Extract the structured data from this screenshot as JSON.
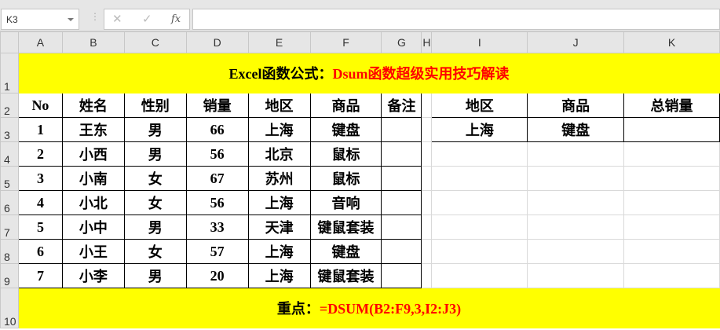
{
  "formula_bar": {
    "name_box": "K3",
    "cancel_icon": "✕",
    "enter_icon": "✓",
    "fx_label": "fx",
    "formula": ""
  },
  "columns": [
    "A",
    "B",
    "C",
    "D",
    "E",
    "F",
    "G",
    "H",
    "I",
    "J",
    "K"
  ],
  "rows": [
    "1",
    "2",
    "3",
    "4",
    "5",
    "6",
    "7",
    "8",
    "9",
    "10"
  ],
  "title": {
    "prefix": "Excel函数公式：",
    "highlight": "Dsum函数超级实用技巧解读"
  },
  "main_table": {
    "headers": [
      "No",
      "姓名",
      "性别",
      "销量",
      "地区",
      "商品",
      "备注"
    ],
    "rows": [
      [
        "1",
        "王东",
        "男",
        "66",
        "上海",
        "键盘",
        ""
      ],
      [
        "2",
        "小西",
        "男",
        "56",
        "北京",
        "鼠标",
        ""
      ],
      [
        "3",
        "小南",
        "女",
        "67",
        "苏州",
        "鼠标",
        ""
      ],
      [
        "4",
        "小北",
        "女",
        "56",
        "上海",
        "音响",
        ""
      ],
      [
        "5",
        "小中",
        "男",
        "33",
        "天津",
        "键鼠套装",
        ""
      ],
      [
        "6",
        "小王",
        "女",
        "57",
        "上海",
        "键盘",
        ""
      ],
      [
        "7",
        "小李",
        "男",
        "20",
        "上海",
        "键鼠套装",
        ""
      ]
    ]
  },
  "criteria_table": {
    "headers": [
      "地区",
      "商品",
      "总销量"
    ],
    "row": [
      "上海",
      "键盘",
      ""
    ]
  },
  "note": {
    "prefix": "重点：",
    "formula": "=DSUM(B2:F9,3,I2:J3)"
  },
  "colors": {
    "highlight_fill": "#ffff00",
    "accent_text": "#ff0000"
  }
}
